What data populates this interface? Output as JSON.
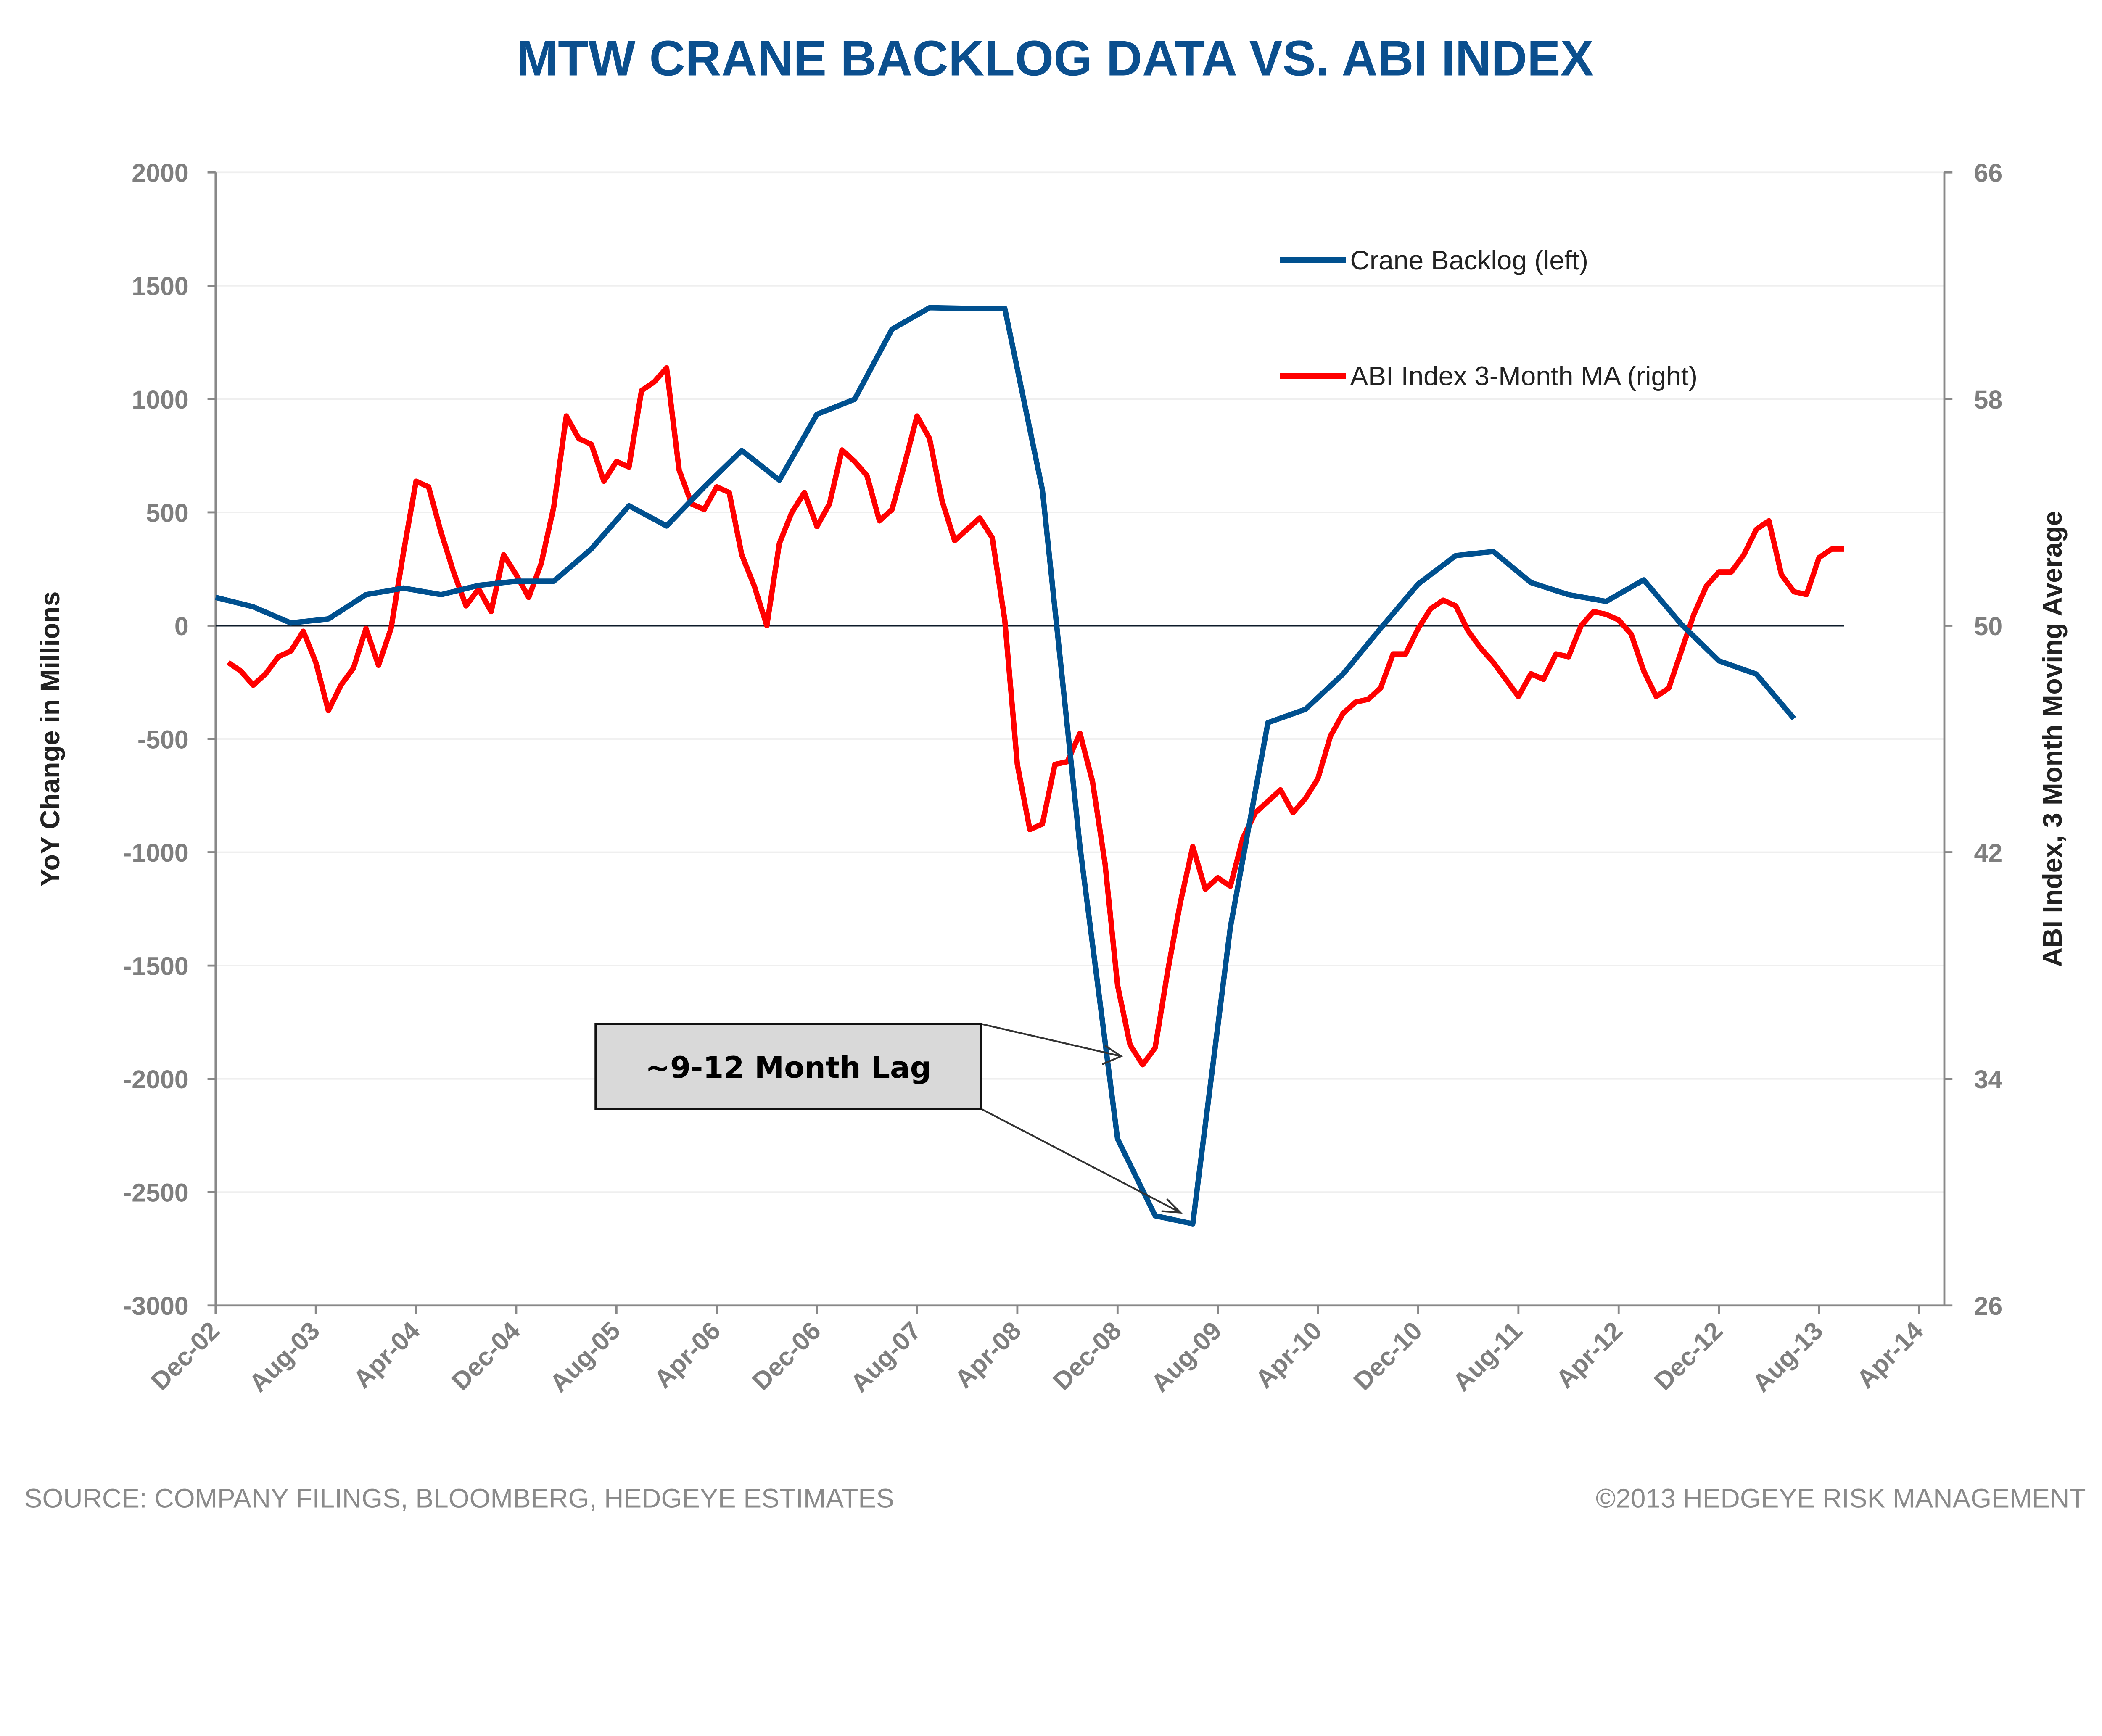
{
  "chart_data": {
    "type": "line",
    "title": "MTW CRANE BACKLOG DATA VS. ABI INDEX",
    "ylabel_left": "YoY Change in Millions",
    "ylabel_right": "ABI Index, 3 Month Moving Average",
    "ylim_left": [
      -3000,
      2000
    ],
    "ylim_right": [
      26,
      66
    ],
    "yticks_left": [
      "2000",
      "1500",
      "1000",
      "500",
      "0",
      "-500",
      "-1000",
      "-1500",
      "-2000",
      "-2500",
      "-3000"
    ],
    "yticks_right": [
      "66",
      "58",
      "50",
      "42",
      "34",
      "26"
    ],
    "xlim": [
      "2002-12",
      "2014-06"
    ],
    "xticks": [
      "Dec-02",
      "Aug-03",
      "Apr-04",
      "Dec-04",
      "Aug-05",
      "Apr-06",
      "Dec-06",
      "Aug-07",
      "Apr-08",
      "Dec-08",
      "Aug-09",
      "Apr-10",
      "Dec-10",
      "Aug-11",
      "Apr-12",
      "Dec-12",
      "Aug-13",
      "Apr-14"
    ],
    "grid": true,
    "legend_position": "top-right",
    "series": [
      {
        "name": "Crane Backlog (left)",
        "axis": "left",
        "color": "#00508f",
        "dates": [
          "2002-12",
          "2003-03",
          "2003-06",
          "2003-09",
          "2003-12",
          "2004-03",
          "2004-06",
          "2004-09",
          "2004-12",
          "2005-03",
          "2005-06",
          "2005-09",
          "2005-12",
          "2006-03",
          "2006-06",
          "2006-09",
          "2006-12",
          "2007-03",
          "2007-06",
          "2007-09",
          "2007-12",
          "2008-03",
          "2008-06",
          "2008-09",
          "2008-12",
          "2009-03",
          "2009-06",
          "2009-09",
          "2009-12",
          "2010-03",
          "2010-06",
          "2010-09",
          "2010-12",
          "2011-03",
          "2011-06",
          "2011-09",
          "2011-12",
          "2012-03",
          "2012-06",
          "2012-09",
          "2012-12",
          "2013-03",
          "2013-06"
        ],
        "values": [
          125,
          83,
          12,
          30,
          137,
          166,
          137,
          178,
          196,
          196,
          339,
          529,
          440,
          612,
          773,
          642,
          933,
          999,
          1308,
          1403,
          1400,
          1400,
          600,
          -975,
          -2265,
          -2604,
          -2640,
          -1332,
          -428,
          -369,
          -214,
          -12,
          184,
          309,
          327,
          190,
          137,
          107,
          202,
          6,
          -155,
          -214,
          -410
        ]
      },
      {
        "name": "ABI Index 3-Month MA (right)",
        "axis": "right",
        "color": "#ff0000",
        "dates": [
          "2003-01",
          "2003-02",
          "2003-03",
          "2003-04",
          "2003-05",
          "2003-06",
          "2003-07",
          "2003-08",
          "2003-09",
          "2003-10",
          "2003-11",
          "2003-12",
          "2004-01",
          "2004-02",
          "2004-03",
          "2004-04",
          "2004-05",
          "2004-06",
          "2004-07",
          "2004-08",
          "2004-09",
          "2004-10",
          "2004-11",
          "2004-12",
          "2005-01",
          "2005-02",
          "2005-03",
          "2005-04",
          "2005-05",
          "2005-06",
          "2005-07",
          "2005-08",
          "2005-09",
          "2005-10",
          "2005-11",
          "2005-12",
          "2006-01",
          "2006-02",
          "2006-03",
          "2006-04",
          "2006-05",
          "2006-06",
          "2006-07",
          "2006-08",
          "2006-09",
          "2006-10",
          "2006-11",
          "2006-12",
          "2007-01",
          "2007-02",
          "2007-03",
          "2007-04",
          "2007-05",
          "2007-06",
          "2007-07",
          "2007-08",
          "2007-09",
          "2007-10",
          "2007-11",
          "2007-12",
          "2008-01",
          "2008-02",
          "2008-03",
          "2008-04",
          "2008-05",
          "2008-06",
          "2008-07",
          "2008-08",
          "2008-09",
          "2008-10",
          "2008-11",
          "2008-12",
          "2009-01",
          "2009-02",
          "2009-03",
          "2009-04",
          "2009-05",
          "2009-06",
          "2009-07",
          "2009-08",
          "2009-09",
          "2009-10",
          "2009-11",
          "2009-12",
          "2010-01",
          "2010-02",
          "2010-03",
          "2010-04",
          "2010-05",
          "2010-06",
          "2010-07",
          "2010-08",
          "2010-09",
          "2010-10",
          "2010-11",
          "2010-12",
          "2011-01",
          "2011-02",
          "2011-03",
          "2011-04",
          "2011-05",
          "2011-06",
          "2011-07",
          "2011-08",
          "2011-09",
          "2011-10",
          "2011-11",
          "2011-12",
          "2012-01",
          "2012-02",
          "2012-03",
          "2012-04",
          "2012-05",
          "2012-06",
          "2012-07",
          "2012-08",
          "2012-09",
          "2012-10",
          "2012-11",
          "2012-12",
          "2013-01",
          "2013-02",
          "2013-03",
          "2013-04",
          "2013-05",
          "2013-06",
          "2013-07",
          "2013-08",
          "2013-09",
          "2013-10"
        ],
        "values": [
          48.7,
          48.4,
          47.9,
          48.3,
          48.9,
          49.1,
          49.8,
          48.7,
          47.0,
          47.9,
          48.5,
          49.9,
          48.6,
          49.9,
          52.6,
          55.1,
          54.9,
          53.3,
          51.9,
          50.7,
          51.3,
          50.5,
          52.5,
          51.8,
          51.0,
          52.2,
          54.2,
          57.4,
          56.6,
          56.4,
          55.1,
          55.8,
          55.6,
          58.3,
          58.6,
          59.1,
          55.5,
          54.3,
          54.1,
          54.9,
          54.7,
          52.5,
          51.4,
          50.0,
          52.9,
          54.0,
          54.7,
          53.5,
          54.3,
          56.2,
          55.8,
          55.3,
          53.7,
          54.1,
          55.7,
          57.4,
          56.6,
          54.4,
          53.0,
          53.4,
          53.8,
          53.1,
          50.2,
          45.1,
          42.8,
          43.0,
          45.1,
          45.2,
          46.2,
          44.5,
          41.6,
          37.3,
          35.2,
          34.5,
          35.1,
          37.8,
          40.2,
          42.2,
          40.7,
          41.1,
          40.8,
          42.5,
          43.4,
          43.8,
          44.2,
          43.4,
          43.9,
          44.6,
          46.1,
          46.9,
          47.3,
          47.4,
          47.8,
          49.0,
          49.0,
          49.9,
          50.6,
          50.9,
          50.7,
          49.8,
          49.2,
          48.7,
          48.1,
          47.5,
          48.3,
          48.1,
          49.0,
          48.9,
          50.0,
          50.5,
          50.4,
          50.2,
          49.7,
          48.4,
          47.5,
          47.8,
          49.1,
          50.4,
          51.4,
          51.9,
          51.9,
          52.5,
          53.4,
          53.7,
          51.8,
          51.2,
          51.1,
          52.4,
          52.7,
          52.7
        ]
      }
    ],
    "annotation": {
      "text": "~9-12 Month Lag",
      "box_fill": "#d9d9d9"
    }
  },
  "footer": {
    "source": "SOURCE: COMPANY FILINGS, BLOOMBERG, HEDGEYE ESTIMATES",
    "copyright": "©2013 HEDGEYE RISK MANAGEMENT"
  }
}
